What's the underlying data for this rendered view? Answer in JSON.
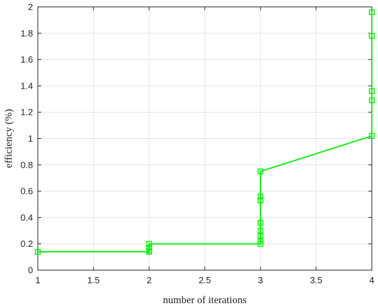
{
  "chart_data": {
    "type": "line",
    "title": "",
    "xlabel": "number of iterations",
    "ylabel": "efficiency (%)",
    "xlim": [
      1,
      4
    ],
    "ylim": [
      0,
      2
    ],
    "x_ticks": [
      "1",
      "1.5",
      "2",
      "2.5",
      "3",
      "3.5",
      "4"
    ],
    "y_ticks": [
      "0",
      "0.2",
      "0.4",
      "0.6",
      "0.8",
      "1",
      "1.2",
      "1.4",
      "1.6",
      "1.8",
      "2"
    ],
    "grid": true,
    "marker": "square",
    "series": [
      {
        "color": "#00ee00",
        "points": [
          {
            "x": 1,
            "y": 0.14
          },
          {
            "x": 2,
            "y": 0.14
          },
          {
            "x": 2,
            "y": 0.15
          },
          {
            "x": 2,
            "y": 0.17
          },
          {
            "x": 2,
            "y": 0.2
          },
          {
            "x": 3,
            "y": 0.2
          },
          {
            "x": 3,
            "y": 0.22
          },
          {
            "x": 3,
            "y": 0.26
          },
          {
            "x": 3,
            "y": 0.3
          },
          {
            "x": 3,
            "y": 0.36
          },
          {
            "x": 3,
            "y": 0.53
          },
          {
            "x": 3,
            "y": 0.56
          },
          {
            "x": 3,
            "y": 0.75
          },
          {
            "x": 4,
            "y": 1.02
          },
          {
            "x": 4,
            "y": 1.29
          },
          {
            "x": 4,
            "y": 1.36
          },
          {
            "x": 4,
            "y": 1.78
          },
          {
            "x": 4,
            "y": 1.96
          }
        ]
      }
    ]
  }
}
